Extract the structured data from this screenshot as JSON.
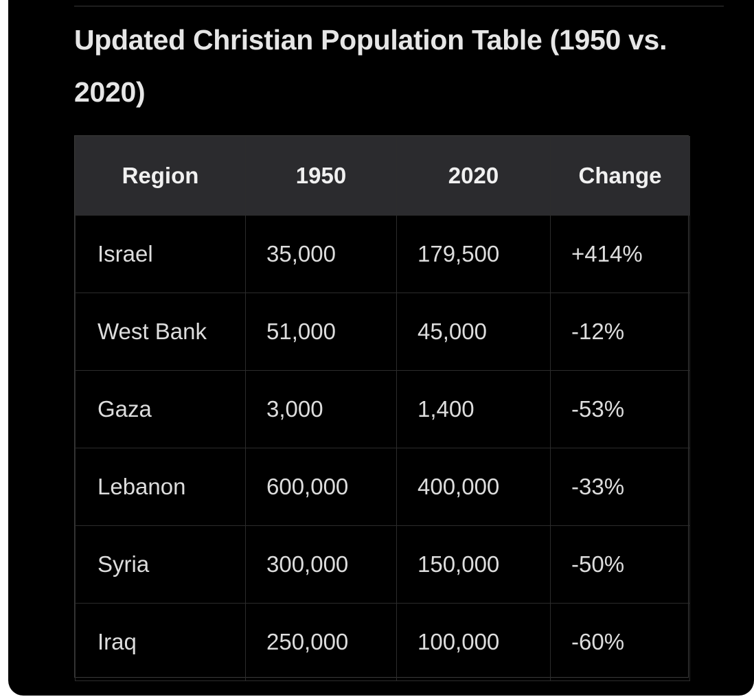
{
  "title": "Updated Christian Population Table (1950 vs. 2020)",
  "table": {
    "headers": [
      "Region",
      "1950",
      "2020",
      "Change"
    ],
    "rows": [
      [
        "Israel",
        "35,000",
        "179,500",
        "+414%"
      ],
      [
        "West Bank",
        "51,000",
        "45,000",
        "-12%"
      ],
      [
        "Gaza",
        "3,000",
        "1,400",
        "-53%"
      ],
      [
        "Lebanon",
        "600,000",
        "400,000",
        "-33%"
      ],
      [
        "Syria",
        "300,000",
        "150,000",
        "-50%"
      ],
      [
        "Iraq",
        "250,000",
        "100,000",
        "-60%"
      ]
    ]
  }
}
